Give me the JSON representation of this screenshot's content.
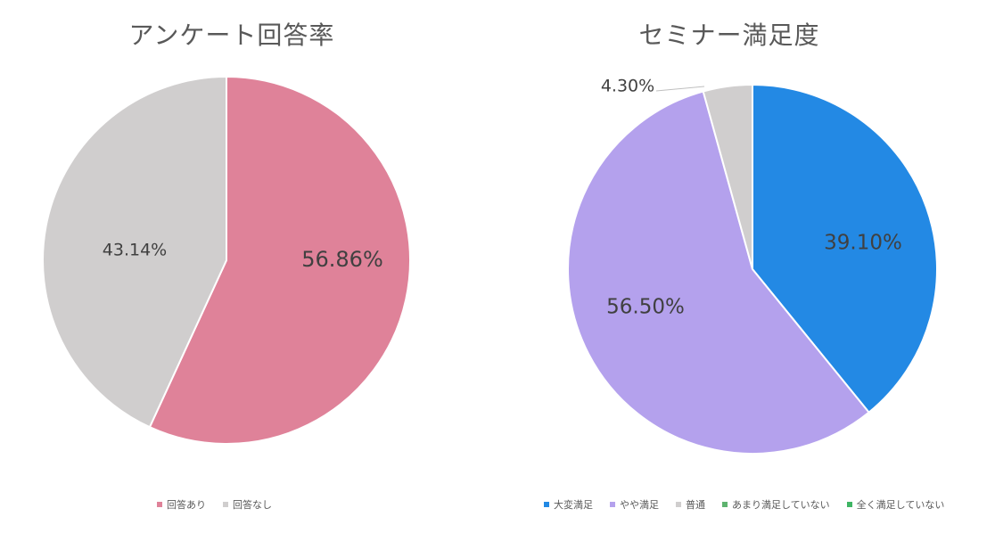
{
  "chart_data": [
    {
      "type": "pie",
      "title": "アンケート回答率",
      "series": [
        {
          "name": "回答あり",
          "value": 56.86,
          "label": "56.86%",
          "color": "#df8299"
        },
        {
          "name": "回答なし",
          "value": 43.14,
          "label": "43.14%",
          "color": "#d0cece"
        }
      ],
      "legend_position": "bottom"
    },
    {
      "type": "pie",
      "title": "セミナー満足度",
      "series": [
        {
          "name": "大変満足",
          "value": 39.1,
          "label": "39.10%",
          "color": "#2389e4"
        },
        {
          "name": "やや満足",
          "value": 56.5,
          "label": "56.50%",
          "color": "#b4a1ed"
        },
        {
          "name": "普通",
          "value": 4.3,
          "label": "4.30%",
          "color": "#d0cece"
        },
        {
          "name": "あまり満足していない",
          "value": 0,
          "label": "",
          "color": "#5eb36f"
        },
        {
          "name": "全く満足していない",
          "value": 0,
          "label": "",
          "color": "#3fb564"
        }
      ],
      "legend_position": "bottom"
    }
  ]
}
